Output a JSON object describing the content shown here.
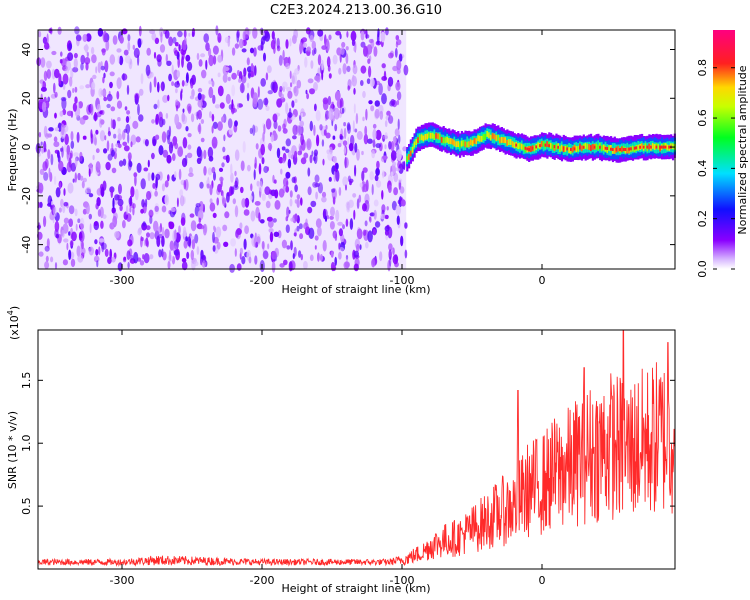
{
  "title": "C2E3.2024.213.00.36.G10",
  "chart_data": [
    {
      "type": "heatmap",
      "xlabel": "Height of straight line (km)",
      "ylabel": "Frequency (Hz)",
      "xlim": [
        -360,
        95
      ],
      "ylim": [
        -50,
        48
      ],
      "xticks": [
        -300,
        -200,
        -100,
        0
      ],
      "yticks": [
        -40,
        -20,
        0,
        20,
        40
      ],
      "noise_region_x": [
        -360,
        -97
      ],
      "signal_centerline": [
        {
          "x": -97,
          "y": -5
        },
        {
          "x": -90,
          "y": 3
        },
        {
          "x": -80,
          "y": 5
        },
        {
          "x": -70,
          "y": 3
        },
        {
          "x": -60,
          "y": 1
        },
        {
          "x": -50,
          "y": 2
        },
        {
          "x": -40,
          "y": 5
        },
        {
          "x": -30,
          "y": 3
        },
        {
          "x": -20,
          "y": 1
        },
        {
          "x": -10,
          "y": -1
        },
        {
          "x": 0,
          "y": 1
        },
        {
          "x": 10,
          "y": 0
        },
        {
          "x": 20,
          "y": -1
        },
        {
          "x": 30,
          "y": 0
        },
        {
          "x": 40,
          "y": 0
        },
        {
          "x": 50,
          "y": -1
        },
        {
          "x": 60,
          "y": -1
        },
        {
          "x": 70,
          "y": 0
        },
        {
          "x": 80,
          "y": 0
        },
        {
          "x": 95,
          "y": 0
        }
      ],
      "colorbar": {
        "label": "Normalized spectral amplitude",
        "range": [
          0.0,
          0.95
        ],
        "ticks": [
          0.0,
          0.2,
          0.4,
          0.6,
          0.8
        ],
        "colormap": "rainbow (white-violet-blue-cyan-green-yellow-red-magenta)"
      }
    },
    {
      "type": "line",
      "xlabel": "Height of straight line (km)",
      "ylabel": "SNR (10 * v/v)",
      "y_multiplier_label": "(x10",
      "y_multiplier_exp": "4",
      "xlim": [
        -360,
        95
      ],
      "ylim": [
        0,
        1.9
      ],
      "xticks": [
        -300,
        -200,
        -100,
        0
      ],
      "yticks": [
        0.5,
        1.0,
        1.5
      ],
      "series": [
        {
          "color": "#ff2a2a",
          "values": [
            {
              "x": -360,
              "y": 0.05
            },
            {
              "x": -300,
              "y": 0.05
            },
            {
              "x": -275,
              "y": 0.08
            },
            {
              "x": -200,
              "y": 0.05
            },
            {
              "x": -110,
              "y": 0.05
            },
            {
              "x": -95,
              "y": 0.1
            },
            {
              "x": -85,
              "y": 0.15
            },
            {
              "x": -80,
              "y": 0.2
            },
            {
              "x": -70,
              "y": 0.25
            },
            {
              "x": -60,
              "y": 0.28
            },
            {
              "x": -50,
              "y": 0.35
            },
            {
              "x": -40,
              "y": 0.42
            },
            {
              "x": -30,
              "y": 0.5
            },
            {
              "x": -20,
              "y": 0.55
            },
            {
              "x": -10,
              "y": 0.7
            },
            {
              "x": 0,
              "y": 0.75
            },
            {
              "x": 10,
              "y": 0.85
            },
            {
              "x": 20,
              "y": 0.9
            },
            {
              "x": 30,
              "y": 1.0
            },
            {
              "x": 40,
              "y": 1.05
            },
            {
              "x": 50,
              "y": 1.1
            },
            {
              "x": 60,
              "y": 1.05
            },
            {
              "x": 70,
              "y": 1.1
            },
            {
              "x": 80,
              "y": 1.15
            },
            {
              "x": 95,
              "y": 1.2
            }
          ],
          "spikes": [
            {
              "x": -17,
              "y": 1.42
            },
            {
              "x": 30,
              "y": 1.6
            },
            {
              "x": 58,
              "y": 1.9
            },
            {
              "x": 90,
              "y": 1.8
            }
          ]
        }
      ]
    }
  ]
}
